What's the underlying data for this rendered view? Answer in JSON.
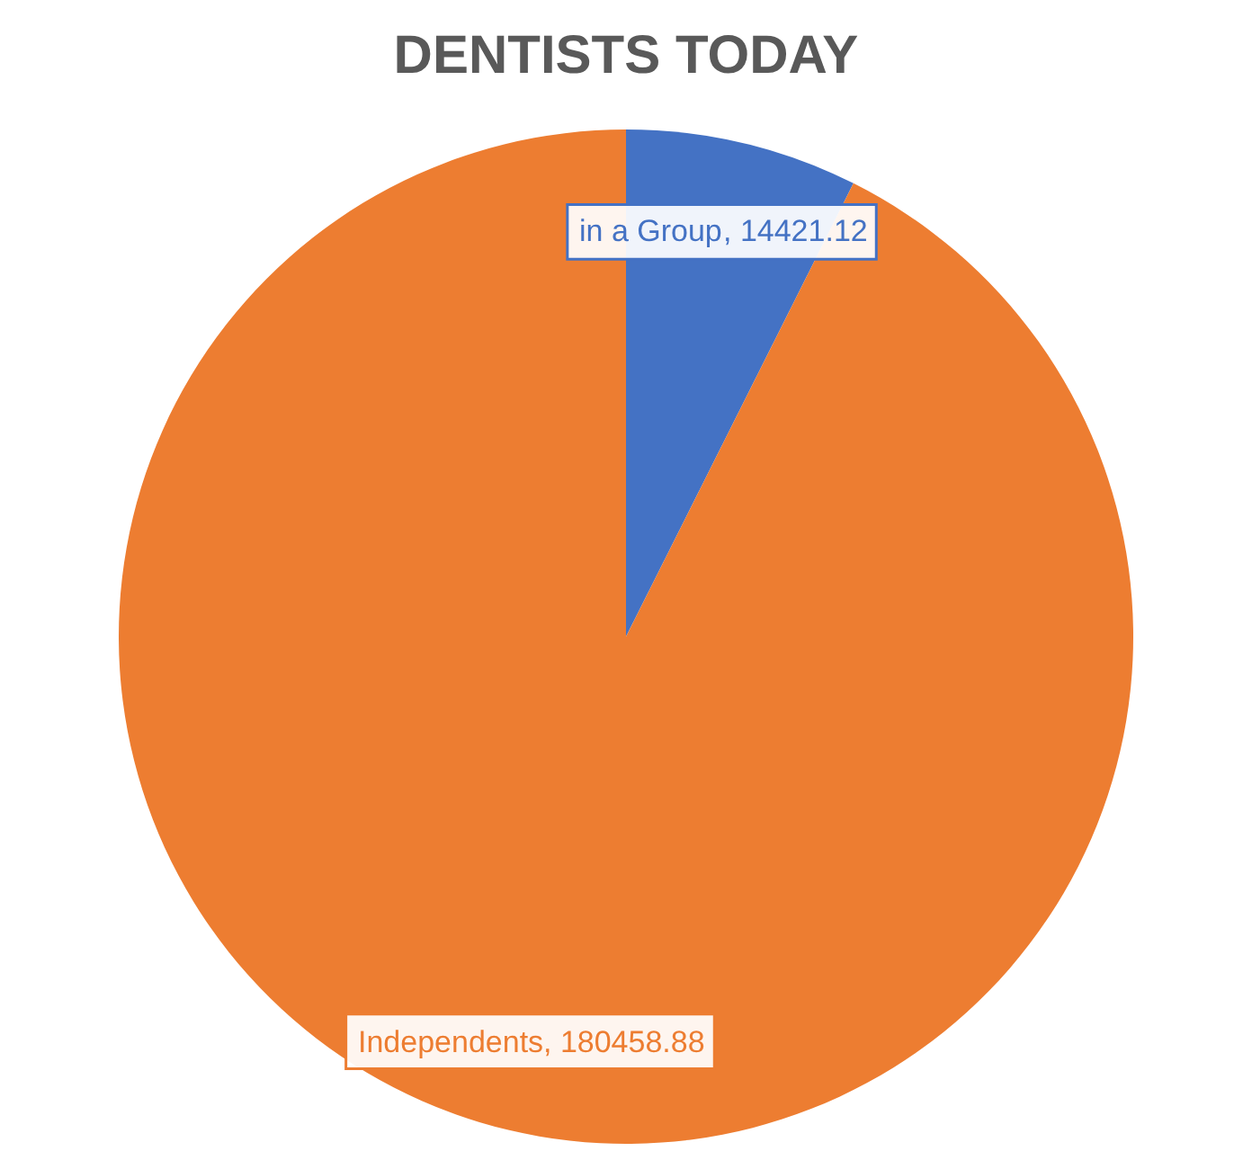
{
  "chart_data": {
    "type": "pie",
    "title": "DENTISTS TODAY",
    "categories": [
      "in a Group",
      "Independents"
    ],
    "values": [
      14421.12,
      180458.88
    ],
    "colors": [
      "#4472c4",
      "#ed7d31"
    ],
    "value_labels": [
      ", 14421.12",
      ", 180458.88"
    ]
  }
}
